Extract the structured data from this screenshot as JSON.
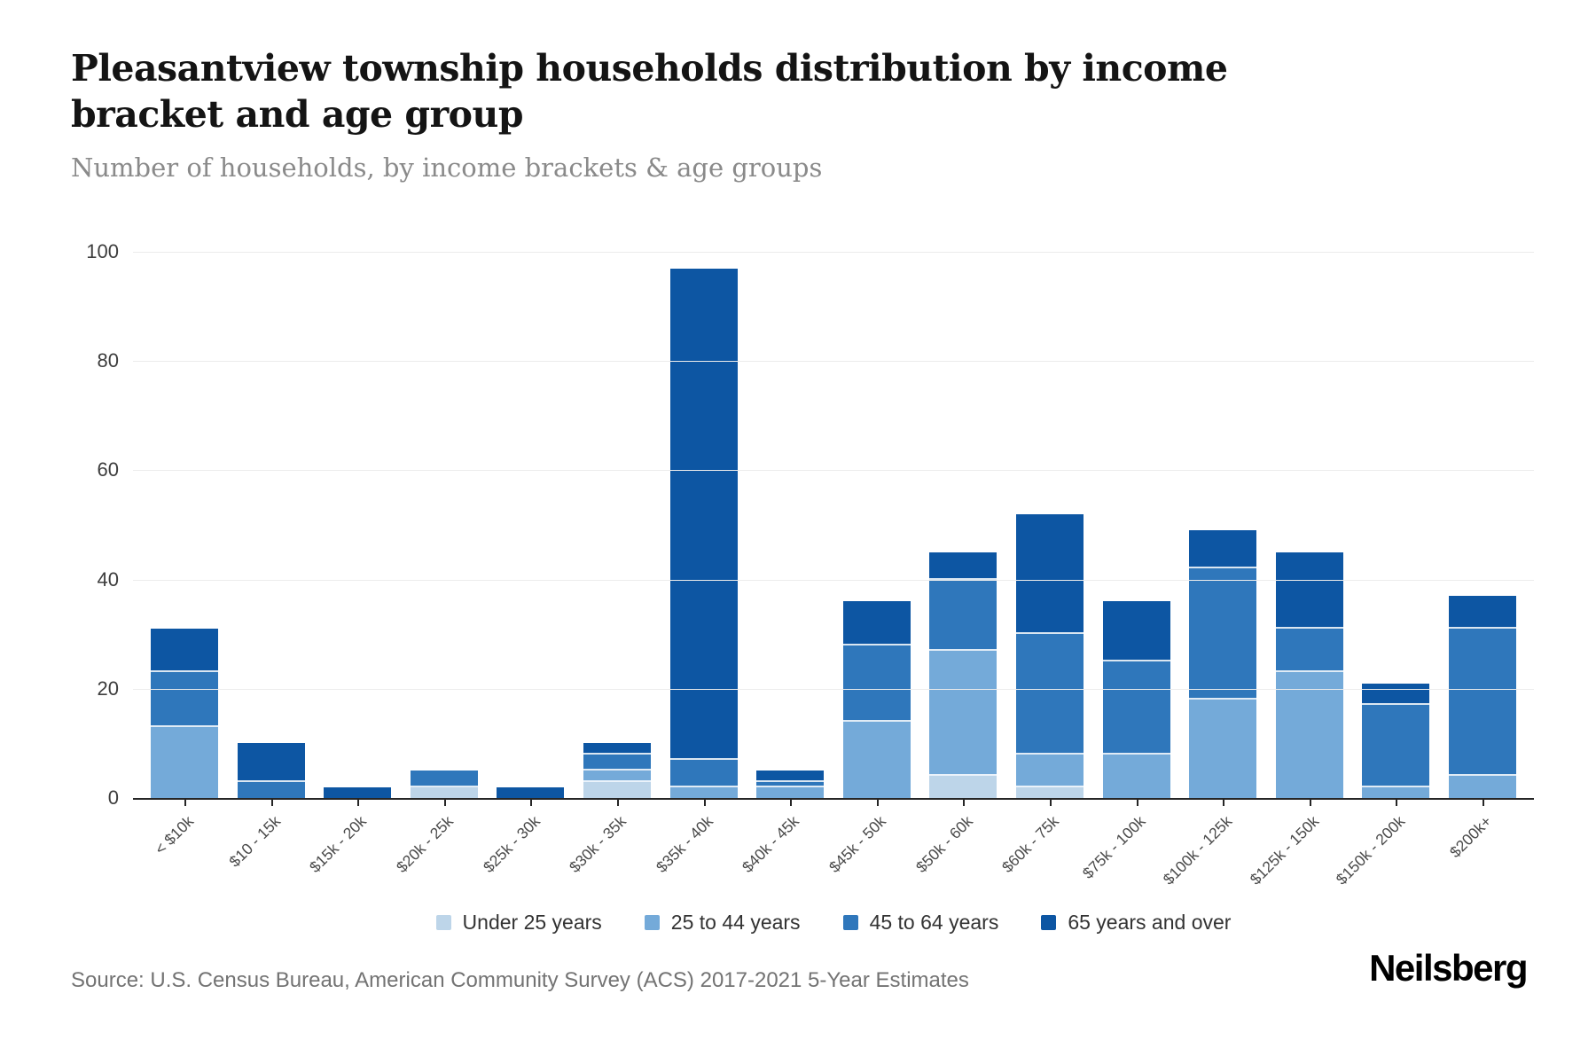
{
  "header": {
    "title": "Pleasantview township households distribution by income bracket and age group",
    "subtitle": "Number of households, by income brackets & age groups"
  },
  "chart_data": {
    "type": "bar",
    "stacked": true,
    "title": "Pleasantview township households distribution by income bracket and age group",
    "xlabel": "",
    "ylabel": "Number of households",
    "ylim": [
      0,
      100
    ],
    "yticks": [
      0,
      20,
      40,
      60,
      80,
      100
    ],
    "grid": true,
    "legend_position": "bottom",
    "categories": [
      "< $10k",
      "$10 - 15k",
      "$15k - 20k",
      "$20k - 25k",
      "$25k - 30k",
      "$30k - 35k",
      "$35k - 40k",
      "$40k - 45k",
      "$45k - 50k",
      "$50k - 60k",
      "$60k - 75k",
      "$75k - 100k",
      "$100k - 125k",
      "$125k - 150k",
      "$150k - 200k",
      "$200k+"
    ],
    "series": [
      {
        "name": "Under 25 years",
        "color": "#bdd5e9",
        "values": [
          0,
          0,
          0,
          2,
          0,
          3,
          0,
          0,
          0,
          4,
          2,
          0,
          0,
          0,
          0,
          0
        ]
      },
      {
        "name": "25 to 44 years",
        "color": "#74aad9",
        "values": [
          13,
          0,
          0,
          0,
          0,
          2,
          2,
          2,
          14,
          23,
          6,
          8,
          18,
          23,
          2,
          4
        ]
      },
      {
        "name": "45 to 64 years",
        "color": "#2f77bb",
        "values": [
          10,
          3,
          0,
          3,
          0,
          3,
          5,
          1,
          14,
          13,
          22,
          17,
          24,
          8,
          15,
          27
        ]
      },
      {
        "name": "65 years and over",
        "color": "#0d56a3",
        "values": [
          8,
          7,
          2,
          0,
          2,
          2,
          90,
          2,
          8,
          5,
          22,
          11,
          7,
          14,
          4,
          6
        ]
      }
    ],
    "totals": [
      31,
      10,
      2,
      5,
      2,
      10,
      97,
      5,
      36,
      45,
      52,
      36,
      49,
      45,
      21,
      37
    ]
  },
  "footer": {
    "source": "Source: U.S. Census Bureau, American Community Survey (ACS) 2017-2021 5-Year Estimates",
    "brand": "Neilsberg"
  }
}
